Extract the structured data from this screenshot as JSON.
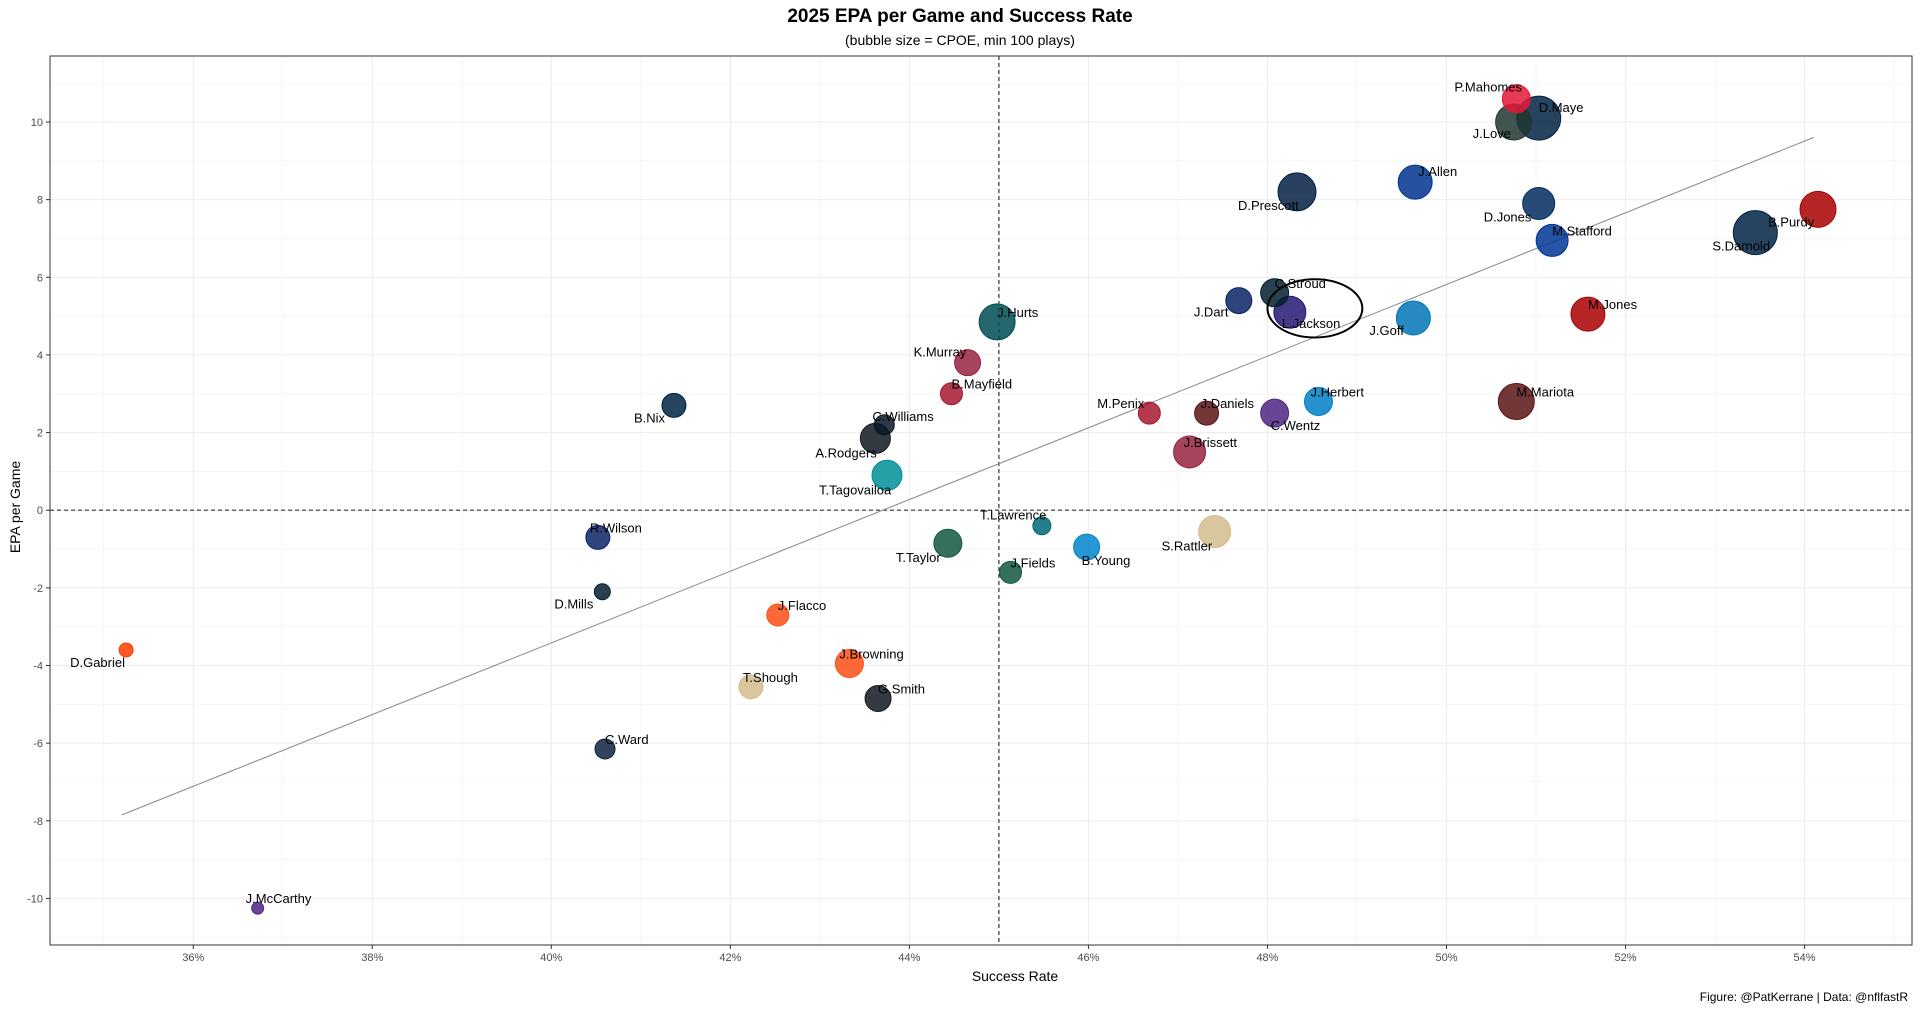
{
  "chart_data": {
    "type": "scatter",
    "title": "2025 EPA per Game and Success Rate",
    "subtitle": "(bubble size = CPOE, min 100 plays)",
    "xlabel": "Success Rate",
    "ylabel": "EPA per Game",
    "caption": "Figure: @PatKerrane | Data: @nflfastR",
    "xlim": [
      0.344,
      0.552
    ],
    "ylim": [
      -11.2,
      11.7
    ],
    "x_ticks": [
      {
        "value": 0.36,
        "label": "36%"
      },
      {
        "value": 0.38,
        "label": "38%"
      },
      {
        "value": 0.4,
        "label": "40%"
      },
      {
        "value": 0.42,
        "label": "42%"
      },
      {
        "value": 0.44,
        "label": "44%"
      },
      {
        "value": 0.46,
        "label": "46%"
      },
      {
        "value": 0.48,
        "label": "48%"
      },
      {
        "value": 0.5,
        "label": "50%"
      },
      {
        "value": 0.52,
        "label": "52%"
      },
      {
        "value": 0.54,
        "label": "54%"
      }
    ],
    "y_ticks": [
      {
        "value": 10,
        "label": "10"
      },
      {
        "value": 8,
        "label": "8"
      },
      {
        "value": 6,
        "label": "6"
      },
      {
        "value": 4,
        "label": "4"
      },
      {
        "value": 2,
        "label": "2"
      },
      {
        "value": 0,
        "label": "0"
      },
      {
        "value": -2,
        "label": "-2"
      },
      {
        "value": -4,
        "label": "-4"
      },
      {
        "value": -6,
        "label": "-6"
      },
      {
        "value": -8,
        "label": "-8"
      },
      {
        "value": -10,
        "label": "-10"
      }
    ],
    "grid": true,
    "reference_lines": {
      "x_mean": 0.45,
      "y": 0
    },
    "trend_line": {
      "x": [
        0.352,
        0.541
      ],
      "y": [
        -7.85,
        9.6
      ]
    },
    "highlight": {
      "player": "L.Jackson",
      "x": 0.4853,
      "y": 5.2,
      "rx": 0.0053,
      "ry": 0.75
    },
    "points": [
      {
        "player": "P.Mahomes",
        "x": 0.5078,
        "y": 10.6,
        "size": 14,
        "color": "#E31837",
        "label_dx": -62,
        "label_dy": -7
      },
      {
        "player": "J.Love",
        "x": 0.5075,
        "y": 10.0,
        "size": 18,
        "color": "#203731",
        "label_dx": -41,
        "label_dy": 16
      },
      {
        "player": "D.Maye",
        "x": 0.5103,
        "y": 10.1,
        "size": 22,
        "color": "#002244",
        "label_dx": 0,
        "label_dy": -6
      },
      {
        "player": "J.Allen",
        "x": 0.4965,
        "y": 8.45,
        "size": 17,
        "color": "#00338D",
        "label_dx": 3,
        "label_dy": -6
      },
      {
        "player": "D.Prescott",
        "x": 0.4833,
        "y": 8.2,
        "size": 19,
        "color": "#041E42",
        "label_dx": -59,
        "label_dy": 18
      },
      {
        "player": "D.Jones",
        "x": 0.5103,
        "y": 7.9,
        "size": 16,
        "color": "#002C5F",
        "label_dx": -55,
        "label_dy": 18
      },
      {
        "player": "M.Stafford",
        "x": 0.5118,
        "y": 6.95,
        "size": 16,
        "color": "#003594",
        "label_dx": 0,
        "label_dy": -5
      },
      {
        "player": "S.Darnold",
        "x": 0.5345,
        "y": 7.15,
        "size": 22,
        "color": "#002244",
        "label_dx": -43,
        "label_dy": 18
      },
      {
        "player": "B.Purdy",
        "x": 0.5415,
        "y": 7.75,
        "size": 18,
        "color": "#AA0000",
        "label_dx": -50,
        "label_dy": 17
      },
      {
        "player": "C.Stroud",
        "x": 0.4808,
        "y": 5.6,
        "size": 14,
        "color": "#03202F",
        "label_dx": 0,
        "label_dy": -5
      },
      {
        "player": "J.Dart",
        "x": 0.4768,
        "y": 5.4,
        "size": 13,
        "color": "#0B2265",
        "label_dx": -45,
        "label_dy": 16
      },
      {
        "player": "L.Jackson",
        "x": 0.4825,
        "y": 5.1,
        "size": 16,
        "color": "#241773",
        "label_dx": -8,
        "label_dy": 16
      },
      {
        "player": "J.Goff",
        "x": 0.4963,
        "y": 4.95,
        "size": 17,
        "color": "#0076B6",
        "label_dx": -44,
        "label_dy": 17
      },
      {
        "player": "M.Jones",
        "x": 0.5158,
        "y": 5.05,
        "size": 17,
        "color": "#AA0000",
        "label_dx": 0,
        "label_dy": -5
      },
      {
        "player": "J.Hurts",
        "x": 0.4498,
        "y": 4.85,
        "size": 18,
        "color": "#004C54",
        "label_dx": 0,
        "label_dy": -5
      },
      {
        "player": "K.Murray",
        "x": 0.4465,
        "y": 3.8,
        "size": 13,
        "color": "#97233F",
        "label_dx": -54,
        "label_dy": -6
      },
      {
        "player": "B.Mayfield",
        "x": 0.4447,
        "y": 3.0,
        "size": 11,
        "color": "#A71930",
        "label_dx": 0,
        "label_dy": -5
      },
      {
        "player": "B.Nix",
        "x": 0.4137,
        "y": 2.7,
        "size": 12,
        "color": "#002244",
        "label_dx": -40,
        "label_dy": 17
      },
      {
        "player": "C.Williams",
        "x": 0.4372,
        "y": 2.2,
        "size": 10,
        "color": "#0B162A",
        "label_dx": -12,
        "label_dy": -4
      },
      {
        "player": "A.Rodgers",
        "x": 0.4362,
        "y": 1.85,
        "size": 15,
        "color": "#101820",
        "label_dx": -60,
        "label_dy": 19
      },
      {
        "player": "T.Tagovailoa",
        "x": 0.4375,
        "y": 0.9,
        "size": 15,
        "color": "#008E97",
        "label_dx": -68,
        "label_dy": 19
      },
      {
        "player": "M.Penix",
        "x": 0.4668,
        "y": 2.5,
        "size": 11,
        "color": "#A71930",
        "label_dx": -52,
        "label_dy": -5
      },
      {
        "player": "J.Daniels",
        "x": 0.4732,
        "y": 2.5,
        "size": 12,
        "color": "#5A1414",
        "label_dx": -6,
        "label_dy": -5
      },
      {
        "player": "C.Wentz",
        "x": 0.4808,
        "y": 2.5,
        "size": 14,
        "color": "#4F2683",
        "label_dx": -4,
        "label_dy": 17
      },
      {
        "player": "J.Herbert",
        "x": 0.4857,
        "y": 2.8,
        "size": 14,
        "color": "#0080C6",
        "label_dx": -8,
        "label_dy": -5
      },
      {
        "player": "M.Mariota",
        "x": 0.5078,
        "y": 2.8,
        "size": 18,
        "color": "#5A1414",
        "label_dx": 0,
        "label_dy": -5
      },
      {
        "player": "J.Brissett",
        "x": 0.4713,
        "y": 1.5,
        "size": 16,
        "color": "#97233F",
        "label_dx": -6,
        "label_dy": -5
      },
      {
        "player": "R.Wilson",
        "x": 0.4052,
        "y": -0.7,
        "size": 12,
        "color": "#0B2265",
        "label_dx": -8,
        "label_dy": -5
      },
      {
        "player": "T.Lawrence",
        "x": 0.4548,
        "y": -0.4,
        "size": 9,
        "color": "#006778",
        "label_dx": -62,
        "label_dy": -6
      },
      {
        "player": "S.Rattler",
        "x": 0.4741,
        "y": -0.55,
        "size": 16,
        "color": "#D3BC8D",
        "label_dx": -53,
        "label_dy": 19
      },
      {
        "player": "T.Taylor",
        "x": 0.4443,
        "y": -0.85,
        "size": 14,
        "color": "#125740",
        "label_dx": -52,
        "label_dy": 19
      },
      {
        "player": "B.Young",
        "x": 0.4598,
        "y": -0.95,
        "size": 13,
        "color": "#0085CA",
        "label_dx": -5,
        "label_dy": 18
      },
      {
        "player": "J.Fields",
        "x": 0.4513,
        "y": -1.6,
        "size": 11,
        "color": "#125740",
        "label_dx": 0,
        "label_dy": -5
      },
      {
        "player": "D.Mills",
        "x": 0.4057,
        "y": -2.1,
        "size": 8,
        "color": "#03202F",
        "label_dx": -48,
        "label_dy": 17
      },
      {
        "player": "J.Flacco",
        "x": 0.4253,
        "y": -2.7,
        "size": 11,
        "color": "#FB4F14",
        "label_dx": 0,
        "label_dy": -5
      },
      {
        "player": "D.Gabriel",
        "x": 0.3525,
        "y": -3.6,
        "size": 7,
        "color": "#FF3C00",
        "label_dx": -56,
        "label_dy": 17
      },
      {
        "player": "J.Browning",
        "x": 0.4333,
        "y": -3.95,
        "size": 14,
        "color": "#FB4F14",
        "label_dx": -10,
        "label_dy": -5
      },
      {
        "player": "T.Shough",
        "x": 0.4223,
        "y": -4.55,
        "size": 12,
        "color": "#D3BC8D",
        "label_dx": -8,
        "label_dy": -5
      },
      {
        "player": "G.Smith",
        "x": 0.4365,
        "y": -4.85,
        "size": 13,
        "color": "#101820",
        "label_dx": 0,
        "label_dy": -5
      },
      {
        "player": "C.Ward",
        "x": 0.406,
        "y": -6.15,
        "size": 10,
        "color": "#0C2340",
        "label_dx": 0,
        "label_dy": -5
      },
      {
        "player": "J.McCarthy",
        "x": 0.3672,
        "y": -10.25,
        "size": 6,
        "color": "#4F2683",
        "label_dx": -12,
        "label_dy": -5
      }
    ]
  }
}
